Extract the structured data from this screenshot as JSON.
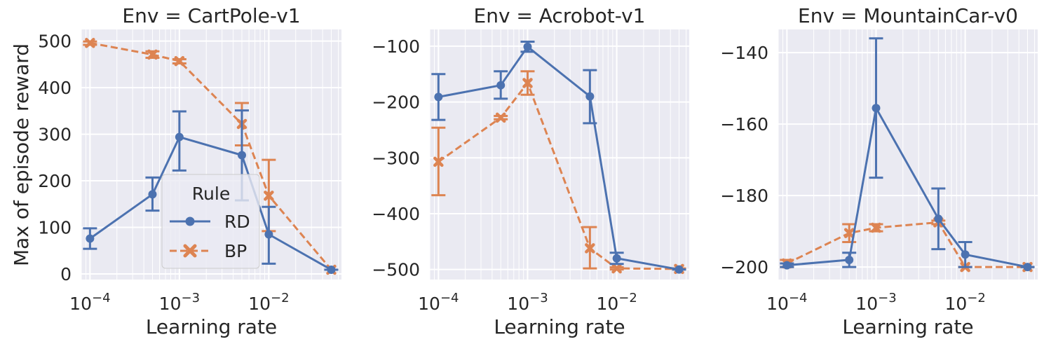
{
  "figure": {
    "ylabel": "Max of episode reward",
    "legend": {
      "title": "Rule",
      "entries": [
        "RD",
        "BP"
      ],
      "placement": "lower-right of first panel"
    },
    "colors": {
      "RD": "#4c72b0",
      "BP": "#dd8452",
      "panel_bg": "#eaeaf2",
      "grid": "#ffffff"
    }
  },
  "chart_data": [
    {
      "type": "line",
      "title": "Env = CartPole-v1",
      "xlabel": "Learning rate",
      "xscale": "log",
      "xlim": [
        8e-05,
        0.065
      ],
      "ylim": [
        -12,
        525
      ],
      "xticks": [
        0.0001,
        0.001,
        0.01
      ],
      "xtick_labels": [
        "10^-4",
        "10^-3",
        "10^-2"
      ],
      "yticks": [
        0,
        100,
        200,
        300,
        400,
        500
      ],
      "ytick_labels": [
        "0",
        "100",
        "200",
        "300",
        "400",
        "500"
      ],
      "series": [
        {
          "name": "RD",
          "x": [
            0.0001,
            0.0005,
            0.001,
            0.005,
            0.01,
            0.05
          ],
          "y": [
            76,
            171,
            294,
            255,
            85,
            9
          ],
          "err_low": [
            54,
            136,
            222,
            158,
            22,
            9
          ],
          "err_high": [
            98,
            207,
            349,
            351,
            144,
            9
          ]
        },
        {
          "name": "BP",
          "x": [
            0.0001,
            0.0005,
            0.001,
            0.005,
            0.01,
            0.05
          ],
          "y": [
            496,
            471,
            457,
            322,
            168,
            9
          ],
          "err_low": [
            492,
            464,
            452,
            276,
            92,
            9
          ],
          "err_high": [
            499,
            478,
            461,
            367,
            245,
            9
          ]
        }
      ]
    },
    {
      "type": "line",
      "title": "Env = Acrobot-v1",
      "xlabel": "Learning rate",
      "xscale": "log",
      "xlim": [
        8e-05,
        0.065
      ],
      "ylim": [
        -518,
        -70
      ],
      "xticks": [
        0.0001,
        0.001,
        0.01
      ],
      "xtick_labels": [
        "10^-4",
        "10^-3",
        "10^-2"
      ],
      "yticks": [
        -100,
        -200,
        -300,
        -400,
        -500
      ],
      "ytick_labels": [
        "−100",
        "−200",
        "−300",
        "−400",
        "−500"
      ],
      "series": [
        {
          "name": "RD",
          "x": [
            0.0001,
            0.0005,
            0.001,
            0.005,
            0.01,
            0.05
          ],
          "y": [
            -191,
            -170,
            -101,
            -190,
            -480,
            -500
          ],
          "err_low": [
            -232,
            -194,
            -110,
            -238,
            -490,
            -500
          ],
          "err_high": [
            -150,
            -145,
            -92,
            -143,
            -470,
            -500
          ]
        },
        {
          "name": "BP",
          "x": [
            0.0001,
            0.0005,
            0.001,
            0.005,
            0.01,
            0.05
          ],
          "y": [
            -307,
            -228,
            -166,
            -462,
            -498,
            -499
          ],
          "err_low": [
            -367,
            -231,
            -187,
            -498,
            -500,
            -500
          ],
          "err_high": [
            -246,
            -225,
            -145,
            -424,
            -496,
            -498
          ]
        }
      ]
    },
    {
      "type": "line",
      "title": "Env = MountainCar-v0",
      "xlabel": "Learning rate",
      "xscale": "log",
      "xlim": [
        8e-05,
        0.065
      ],
      "ylim": [
        -203.5,
        -133.5
      ],
      "xticks": [
        0.0001,
        0.001,
        0.01
      ],
      "xtick_labels": [
        "10^-4",
        "10^-3",
        "10^-2"
      ],
      "yticks": [
        -140,
        -160,
        -180,
        -200
      ],
      "ytick_labels": [
        "−140",
        "−160",
        "−180",
        "−200"
      ],
      "series": [
        {
          "name": "RD",
          "x": [
            0.0001,
            0.0005,
            0.001,
            0.005,
            0.01,
            0.05
          ],
          "y": [
            -199.5,
            -198,
            -155.5,
            -186.5,
            -196.5,
            -200
          ],
          "err_low": [
            -200,
            -200,
            -175,
            -195,
            -200,
            -200
          ],
          "err_high": [
            -199,
            -196,
            -136,
            -178,
            -193,
            -200
          ]
        },
        {
          "name": "BP",
          "x": [
            0.0001,
            0.0005,
            0.001,
            0.005,
            0.01,
            0.05
          ],
          "y": [
            -199,
            -190.5,
            -189,
            -187.5,
            -200,
            -200
          ],
          "err_low": [
            -200,
            -193,
            -190,
            -188,
            -200,
            -200
          ],
          "err_high": [
            -198,
            -188,
            -188,
            -187,
            -200,
            -200
          ]
        }
      ]
    }
  ]
}
